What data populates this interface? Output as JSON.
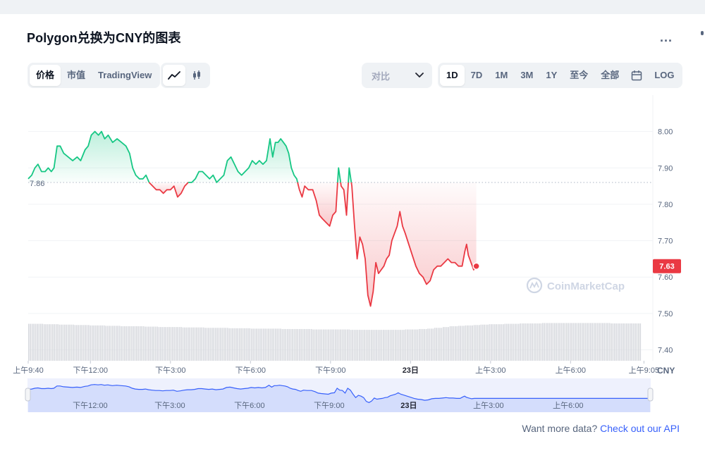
{
  "title": "Polygon兑换为CNY的图表",
  "more_label": "...",
  "view_tabs": [
    {
      "label": "价格",
      "active": true
    },
    {
      "label": "市值",
      "active": false
    },
    {
      "label": "TradingView",
      "active": false
    }
  ],
  "chart_type_icons": [
    {
      "icon": "line-chart-icon",
      "active": true
    },
    {
      "icon": "candlestick-icon",
      "active": false
    }
  ],
  "compare": {
    "label": "对比",
    "icon": "chevron-down-icon"
  },
  "ranges": [
    {
      "label": "1D",
      "active": true
    },
    {
      "label": "7D",
      "active": false
    },
    {
      "label": "1M",
      "active": false
    },
    {
      "label": "3M",
      "active": false
    },
    {
      "label": "1Y",
      "active": false
    },
    {
      "label": "至今",
      "active": false
    },
    {
      "label": "全部",
      "active": false
    }
  ],
  "calendar_icon": "calendar-icon",
  "log_label": "LOG",
  "footer": {
    "text": "Want more data?",
    "link": "Check out our API"
  },
  "colors": {
    "up": "#16c784",
    "down": "#ea3943",
    "nav_line": "#3861fb",
    "volume": "#d7d9de"
  },
  "chart_data": {
    "type": "area",
    "currency_label": "CNY",
    "watermark": "CoinMarketCap",
    "baseline": 7.86,
    "baseline_label": "7.86",
    "current_price": 7.63,
    "current_label": "7.63",
    "ylim": [
      7.37,
      8.1
    ],
    "yticks": [
      {
        "value": 8.0,
        "label": "8.00"
      },
      {
        "value": 7.9,
        "label": "7.90"
      },
      {
        "value": 7.8,
        "label": "7.80"
      },
      {
        "value": 7.7,
        "label": "7.70"
      },
      {
        "value": 7.6,
        "label": "7.60"
      },
      {
        "value": 7.5,
        "label": "7.50"
      },
      {
        "value": 7.4,
        "label": "7.40"
      }
    ],
    "xlim": [
      0,
      1405
    ],
    "xticks": [
      {
        "t": 0,
        "label": "上午9:40",
        "bold": false
      },
      {
        "t": 140,
        "label": "下午12:00",
        "bold": false
      },
      {
        "t": 320,
        "label": "下午3:00",
        "bold": false
      },
      {
        "t": 500,
        "label": "下午6:00",
        "bold": false
      },
      {
        "t": 680,
        "label": "下午9:00",
        "bold": false
      },
      {
        "t": 860,
        "label": "23日",
        "bold": true
      },
      {
        "t": 1040,
        "label": "上午3:00",
        "bold": false
      },
      {
        "t": 1220,
        "label": "上午6:00",
        "bold": false
      },
      {
        "t": 1385,
        "label": "上午9:05",
        "bold": false
      }
    ],
    "navigator_ticks": [
      {
        "t": 140,
        "label": "下午12:00",
        "bold": false
      },
      {
        "t": 320,
        "label": "下午3:00",
        "bold": false
      },
      {
        "t": 500,
        "label": "下午6:00",
        "bold": false
      },
      {
        "t": 680,
        "label": "下午9:00",
        "bold": false
      },
      {
        "t": 860,
        "label": "23日",
        "bold": true
      },
      {
        "t": 1040,
        "label": "上午3:00",
        "bold": false
      },
      {
        "t": 1220,
        "label": "上午6:00",
        "bold": false
      }
    ],
    "series": [
      {
        "values": [
          [
            0,
            7.87
          ],
          [
            8,
            7.88
          ],
          [
            15,
            7.9
          ],
          [
            22,
            7.91
          ],
          [
            30,
            7.89
          ],
          [
            38,
            7.89
          ],
          [
            45,
            7.9
          ],
          [
            52,
            7.89
          ],
          [
            58,
            7.9
          ],
          [
            65,
            7.96
          ],
          [
            72,
            7.96
          ],
          [
            80,
            7.94
          ],
          [
            90,
            7.93
          ],
          [
            100,
            7.92
          ],
          [
            110,
            7.93
          ],
          [
            118,
            7.92
          ],
          [
            128,
            7.95
          ],
          [
            135,
            7.96
          ],
          [
            142,
            7.99
          ],
          [
            150,
            8.0
          ],
          [
            158,
            7.99
          ],
          [
            165,
            8.0
          ],
          [
            172,
            7.98
          ],
          [
            180,
            7.99
          ],
          [
            190,
            7.97
          ],
          [
            200,
            7.98
          ],
          [
            210,
            7.97
          ],
          [
            220,
            7.96
          ],
          [
            228,
            7.94
          ],
          [
            235,
            7.9
          ],
          [
            242,
            7.88
          ],
          [
            250,
            7.87
          ],
          [
            258,
            7.87
          ],
          [
            265,
            7.88
          ],
          [
            272,
            7.86
          ],
          [
            280,
            7.85
          ],
          [
            288,
            7.84
          ],
          [
            296,
            7.84
          ],
          [
            304,
            7.83
          ],
          [
            312,
            7.84
          ],
          [
            320,
            7.84
          ],
          [
            328,
            7.85
          ],
          [
            336,
            7.82
          ],
          [
            344,
            7.83
          ],
          [
            352,
            7.85
          ],
          [
            360,
            7.86
          ],
          [
            368,
            7.86
          ],
          [
            376,
            7.87
          ],
          [
            384,
            7.89
          ],
          [
            392,
            7.89
          ],
          [
            400,
            7.88
          ],
          [
            408,
            7.87
          ],
          [
            416,
            7.88
          ],
          [
            424,
            7.86
          ],
          [
            432,
            7.87
          ],
          [
            440,
            7.88
          ],
          [
            448,
            7.92
          ],
          [
            456,
            7.93
          ],
          [
            464,
            7.91
          ],
          [
            472,
            7.89
          ],
          [
            480,
            7.88
          ],
          [
            488,
            7.89
          ],
          [
            496,
            7.9
          ],
          [
            504,
            7.92
          ],
          [
            512,
            7.91
          ],
          [
            520,
            7.92
          ],
          [
            528,
            7.91
          ],
          [
            536,
            7.92
          ],
          [
            544,
            7.98
          ],
          [
            550,
            7.93
          ],
          [
            556,
            7.97
          ],
          [
            562,
            7.97
          ],
          [
            568,
            7.98
          ],
          [
            574,
            7.97
          ],
          [
            580,
            7.96
          ],
          [
            586,
            7.94
          ],
          [
            592,
            7.9
          ],
          [
            598,
            7.88
          ],
          [
            604,
            7.87
          ],
          [
            610,
            7.84
          ],
          [
            616,
            7.82
          ],
          [
            622,
            7.85
          ],
          [
            630,
            7.84
          ],
          [
            640,
            7.84
          ],
          [
            648,
            7.81
          ],
          [
            655,
            7.77
          ],
          [
            662,
            7.76
          ],
          [
            670,
            7.75
          ],
          [
            678,
            7.74
          ],
          [
            685,
            7.77
          ],
          [
            692,
            7.78
          ],
          [
            698,
            7.9
          ],
          [
            704,
            7.85
          ],
          [
            710,
            7.84
          ],
          [
            716,
            7.77
          ],
          [
            722,
            7.9
          ],
          [
            728,
            7.85
          ],
          [
            734,
            7.74
          ],
          [
            740,
            7.65
          ],
          [
            746,
            7.71
          ],
          [
            752,
            7.69
          ],
          [
            758,
            7.65
          ],
          [
            764,
            7.55
          ],
          [
            770,
            7.52
          ],
          [
            776,
            7.56
          ],
          [
            782,
            7.64
          ],
          [
            788,
            7.61
          ],
          [
            794,
            7.62
          ],
          [
            800,
            7.63
          ],
          [
            806,
            7.65
          ],
          [
            812,
            7.66
          ],
          [
            818,
            7.7
          ],
          [
            824,
            7.72
          ],
          [
            830,
            7.74
          ],
          [
            836,
            7.78
          ],
          [
            842,
            7.74
          ],
          [
            848,
            7.72
          ],
          [
            856,
            7.69
          ],
          [
            864,
            7.66
          ],
          [
            872,
            7.63
          ],
          [
            880,
            7.61
          ],
          [
            888,
            7.6
          ],
          [
            896,
            7.58
          ],
          [
            904,
            7.59
          ],
          [
            912,
            7.62
          ],
          [
            920,
            7.63
          ],
          [
            928,
            7.63
          ],
          [
            936,
            7.64
          ],
          [
            944,
            7.65
          ],
          [
            952,
            7.64
          ],
          [
            960,
            7.64
          ],
          [
            968,
            7.63
          ],
          [
            976,
            7.63
          ],
          [
            982,
            7.67
          ],
          [
            986,
            7.69
          ],
          [
            990,
            7.66
          ],
          [
            996,
            7.64
          ],
          [
            1002,
            7.62
          ],
          [
            1008,
            7.63
          ]
        ]
      }
    ],
    "volume_values": [
      0.92,
      0.92,
      0.91,
      0.91,
      0.9,
      0.9,
      0.89,
      0.89,
      0.88,
      0.88,
      0.87,
      0.87,
      0.86,
      0.86,
      0.86,
      0.85,
      0.85,
      0.84,
      0.84,
      0.84,
      0.83,
      0.83,
      0.83,
      0.82,
      0.82,
      0.82,
      0.81,
      0.81,
      0.81,
      0.8,
      0.8,
      0.8,
      0.8,
      0.79,
      0.79,
      0.79,
      0.79,
      0.78,
      0.78,
      0.78,
      0.78,
      0.78,
      0.77,
      0.77,
      0.77,
      0.77,
      0.77,
      0.77,
      0.77,
      0.78,
      0.78,
      0.79,
      0.8,
      0.82,
      0.84,
      0.86,
      0.87,
      0.88,
      0.89,
      0.9,
      0.91,
      0.91,
      0.92,
      0.92,
      0.93,
      0.93,
      0.93,
      0.94,
      0.94,
      0.94,
      0.94,
      0.94,
      0.94,
      0.94,
      0.94,
      0.94,
      0.93,
      0.93,
      0.93,
      0.93
    ]
  }
}
